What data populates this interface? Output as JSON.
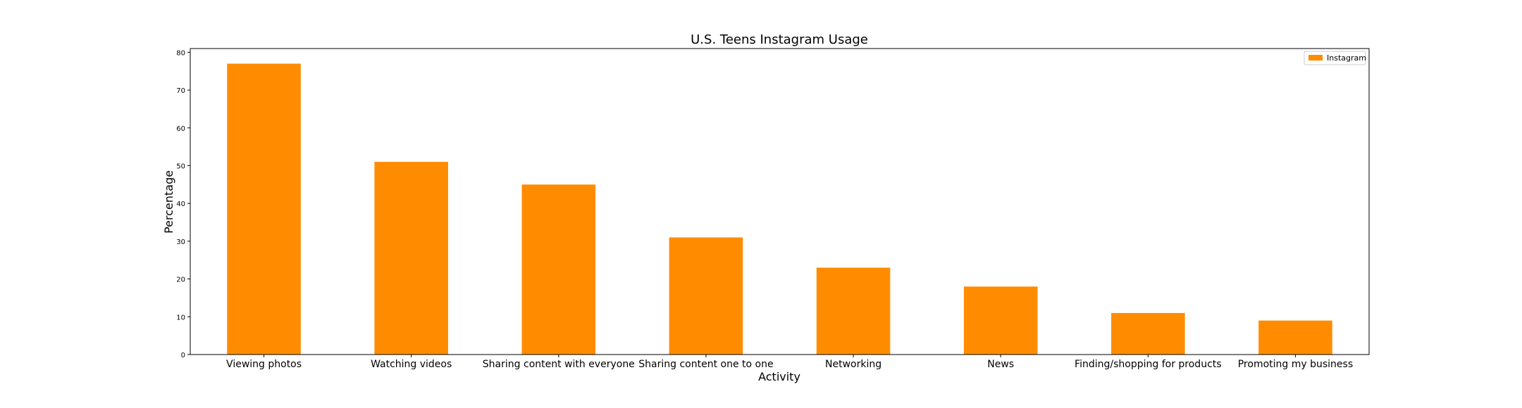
{
  "chart_data": {
    "type": "bar",
    "title": "U.S. Teens Instagram Usage",
    "xlabel": "Activity",
    "ylabel": "Percentage",
    "categories": [
      "Viewing photos",
      "Watching videos",
      "Sharing content with everyone",
      "Sharing content one to one",
      "Networking",
      "News",
      "Finding/shopping for products",
      "Promoting my business"
    ],
    "series": [
      {
        "name": "Instagram",
        "color": "#ff8c00",
        "values": [
          77,
          51,
          45,
          31,
          23,
          18,
          11,
          9
        ]
      }
    ],
    "ylim": [
      0,
      81
    ],
    "yticks": [
      0,
      10,
      20,
      30,
      40,
      50,
      60,
      70,
      80
    ],
    "grid": false,
    "legend_position": "top-right"
  }
}
